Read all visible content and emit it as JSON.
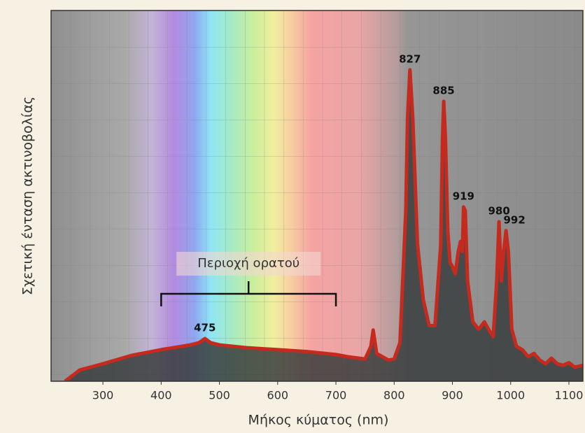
{
  "chart_data": {
    "type": "line",
    "x_label": "Μήκος κύματος (nm)",
    "y_label": "Σχετική ένταση ακτινοβολίας",
    "xlim": [
      211,
      1124
    ],
    "ylim": [
      0,
      100
    ],
    "xticks": [
      300,
      400,
      500,
      600,
      700,
      800,
      900,
      1000,
      1100
    ],
    "series": [
      {
        "color": "#c42a1e",
        "x": [
          235,
          260,
          300,
          350,
          400,
          450,
          465,
          475,
          485,
          500,
          550,
          600,
          650,
          700,
          720,
          750,
          760,
          764,
          770,
          790,
          800,
          810,
          820,
          823,
          827,
          832,
          840,
          850,
          860,
          870,
          880,
          883,
          885,
          888,
          892,
          896,
          900,
          905,
          910,
          914,
          917,
          919,
          922,
          926,
          935,
          945,
          955,
          962,
          970,
          976,
          980,
          984,
          988,
          992,
          996,
          1002,
          1010,
          1020,
          1030,
          1040,
          1050,
          1060,
          1070,
          1080,
          1090,
          1100,
          1110,
          1124
        ],
        "values": [
          0,
          3,
          4.7,
          7,
          8.5,
          9.8,
          10.4,
          11.5,
          10.4,
          9.8,
          9,
          8.5,
          8,
          7.2,
          6.6,
          6,
          9.4,
          13.8,
          7.5,
          5.7,
          6,
          10.4,
          46,
          71,
          84,
          71,
          37,
          22,
          15,
          15,
          37,
          66,
          75.5,
          66,
          40.6,
          32,
          31,
          29,
          35,
          37.7,
          35,
          47,
          46,
          27,
          16,
          14,
          16,
          14,
          12,
          27,
          43,
          27,
          35,
          40.6,
          35,
          14,
          9.4,
          8.5,
          6.6,
          7.5,
          5.7,
          4.7,
          6.2,
          4.7,
          4.3,
          5,
          3.8,
          4.3
        ]
      }
    ],
    "peaks": [
      {
        "x": 475,
        "y": 11.5
      },
      {
        "x": 827,
        "y": 84
      },
      {
        "x": 885,
        "y": 75.5
      },
      {
        "x": 919,
        "y": 47
      },
      {
        "x": 980,
        "y": 43
      },
      {
        "x": 992,
        "y": 40.6
      }
    ],
    "bracket": {
      "label": "Περιοχή ορατού",
      "range": [
        400,
        700
      ]
    }
  }
}
